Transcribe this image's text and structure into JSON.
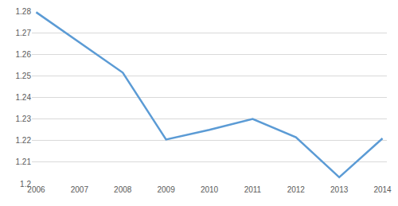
{
  "chart_data": {
    "type": "line",
    "categories": [
      "2006",
      "2007",
      "2008",
      "2009",
      "2010",
      "2011",
      "2012",
      "2013",
      "2014"
    ],
    "values": [
      1.2795,
      1.2655,
      1.2515,
      1.2205,
      1.225,
      1.23,
      1.2215,
      1.203,
      1.221
    ],
    "color": "#5b9bd5",
    "ylim": [
      1.2,
      1.28
    ],
    "yticks": [
      1.2,
      1.21,
      1.22,
      1.23,
      1.24,
      1.25,
      1.26,
      1.27,
      1.28
    ],
    "grid": true
  }
}
